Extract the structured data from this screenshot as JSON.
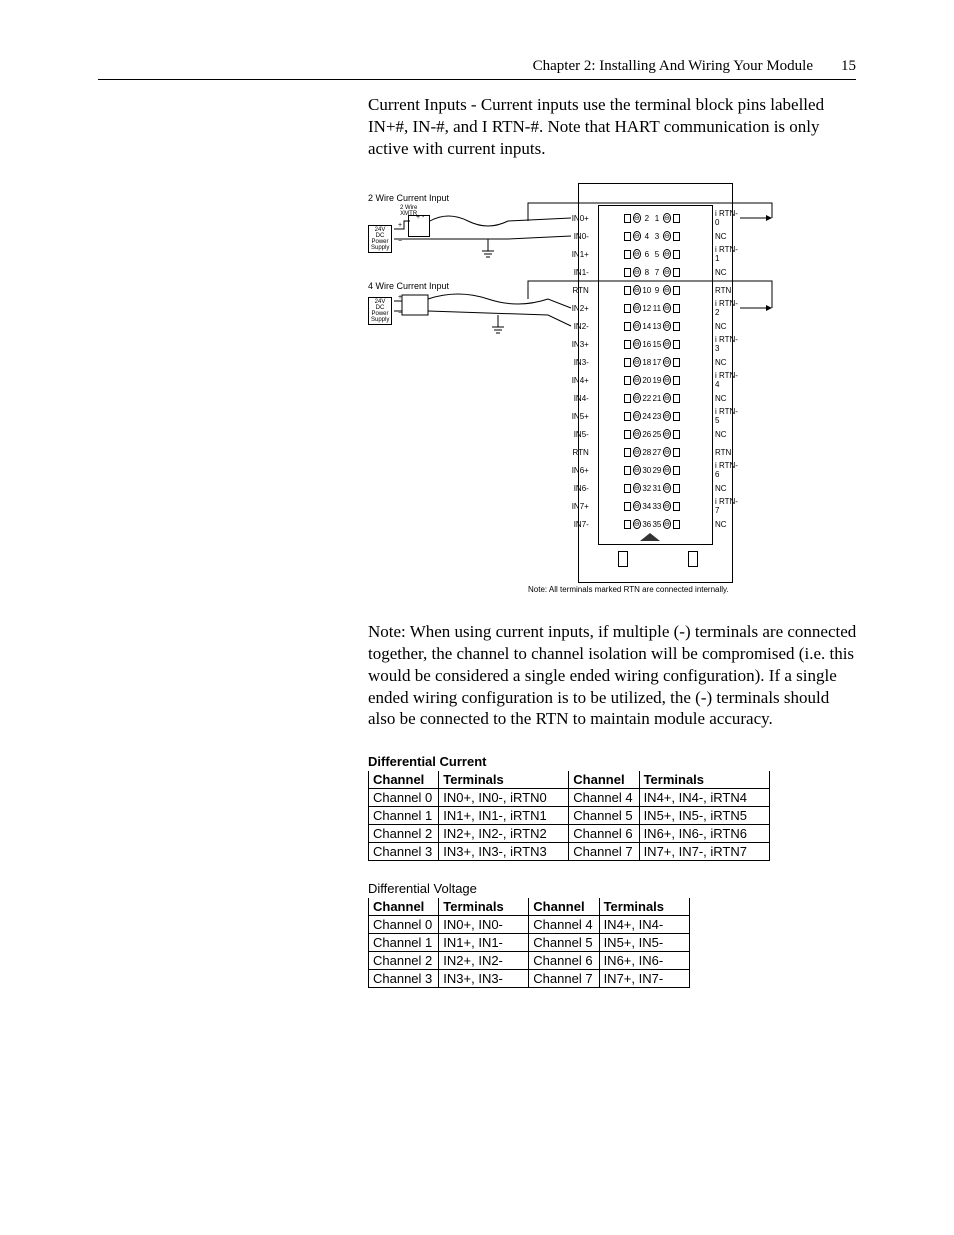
{
  "header": {
    "chapter": "Chapter 2: Installing And Wiring Your Module",
    "page_number": "15"
  },
  "para_intro": "Current Inputs - Current inputs use the terminal block pins labelled IN+#, IN-#, and I RTN-#.  Note that HART communication is only active with current inputs.",
  "para_note": "Note:  When using current inputs, if multiple (-) terminals are connected together, the channel to channel isolation will be compromised (i.e. this would be considered a single ended wiring configuration).  If a single ended wiring configuration is to be utilized, the (-) terminals should also be connected to the RTN to maintain module accuracy.",
  "diagram": {
    "label_2wire": "2 Wire Current Input",
    "label_2wire_xmtr": "2 Wire\nXMTR",
    "label_4wire": "4 Wire Current Input",
    "label_4wire_xmtr": "4 Wire\nXMTR",
    "power_supply": "24V DC\nPower\nSupply",
    "note": "Note:  All terminals marked RTN are connected internally.",
    "rows": [
      {
        "l": "IN0+",
        "nl": "2",
        "nr": "1",
        "r": "i RTN-0"
      },
      {
        "l": "IN0-",
        "nl": "4",
        "nr": "3",
        "r": "NC"
      },
      {
        "l": "IN1+",
        "nl": "6",
        "nr": "5",
        "r": "i RTN-1"
      },
      {
        "l": "IN1-",
        "nl": "8",
        "nr": "7",
        "r": "NC"
      },
      {
        "l": "RTN",
        "nl": "10",
        "nr": "9",
        "r": "RTN"
      },
      {
        "l": "IN2+",
        "nl": "12",
        "nr": "11",
        "r": "i RTN-2"
      },
      {
        "l": "IN2-",
        "nl": "14",
        "nr": "13",
        "r": "NC"
      },
      {
        "l": "IN3+",
        "nl": "16",
        "nr": "15",
        "r": "i RTN-3"
      },
      {
        "l": "IN3-",
        "nl": "18",
        "nr": "17",
        "r": "NC"
      },
      {
        "l": "IN4+",
        "nl": "20",
        "nr": "19",
        "r": "i RTN-4"
      },
      {
        "l": "IN4-",
        "nl": "22",
        "nr": "21",
        "r": "NC"
      },
      {
        "l": "IN5+",
        "nl": "24",
        "nr": "23",
        "r": "i RTN-5"
      },
      {
        "l": "IN5-",
        "nl": "26",
        "nr": "25",
        "r": "NC"
      },
      {
        "l": "RTN",
        "nl": "28",
        "nr": "27",
        "r": "RTN"
      },
      {
        "l": "IN6+",
        "nl": "30",
        "nr": "29",
        "r": "i RTN-6"
      },
      {
        "l": "IN6-",
        "nl": "32",
        "nr": "31",
        "r": "NC"
      },
      {
        "l": "IN7+",
        "nl": "34",
        "nr": "33",
        "r": "i RTN-7"
      },
      {
        "l": "IN7-",
        "nl": "36",
        "nr": "35",
        "r": "NC"
      }
    ]
  },
  "tables": {
    "current": {
      "title": "Differential Current",
      "h1": "Channel",
      "h2": "Terminals",
      "h3": "Channel",
      "h4": "Terminals",
      "rows": [
        [
          "Channel 0",
          "IN0+, IN0-, iRTN0",
          "Channel 4",
          "IN4+, IN4-, iRTN4"
        ],
        [
          "Channel 1",
          "IN1+, IN1-, iRTN1",
          "Channel 5",
          "IN5+, IN5-, iRTN5"
        ],
        [
          "Channel 2",
          "IN2+, IN2-, iRTN2",
          "Channel 6",
          "IN6+, IN6-, iRTN6"
        ],
        [
          "Channel 3",
          "IN3+, IN3-, iRTN3",
          "Channel 7",
          "IN7+, IN7-, iRTN7"
        ]
      ]
    },
    "voltage": {
      "title": "Differential Voltage",
      "h1": "Channel",
      "h2": "Terminals",
      "h3": "Channel",
      "h4": "Terminals",
      "rows": [
        [
          "Channel 0",
          "IN0+, IN0-",
          "Channel 4",
          "IN4+, IN4-"
        ],
        [
          "Channel 1",
          "IN1+, IN1-",
          "Channel 5",
          "IN5+, IN5-"
        ],
        [
          "Channel 2",
          "IN2+, IN2-",
          "Channel 6",
          "IN6+, IN6-"
        ],
        [
          "Channel 3",
          "IN3+, IN3-",
          "Channel 7",
          "IN7+, IN7-"
        ]
      ]
    }
  }
}
